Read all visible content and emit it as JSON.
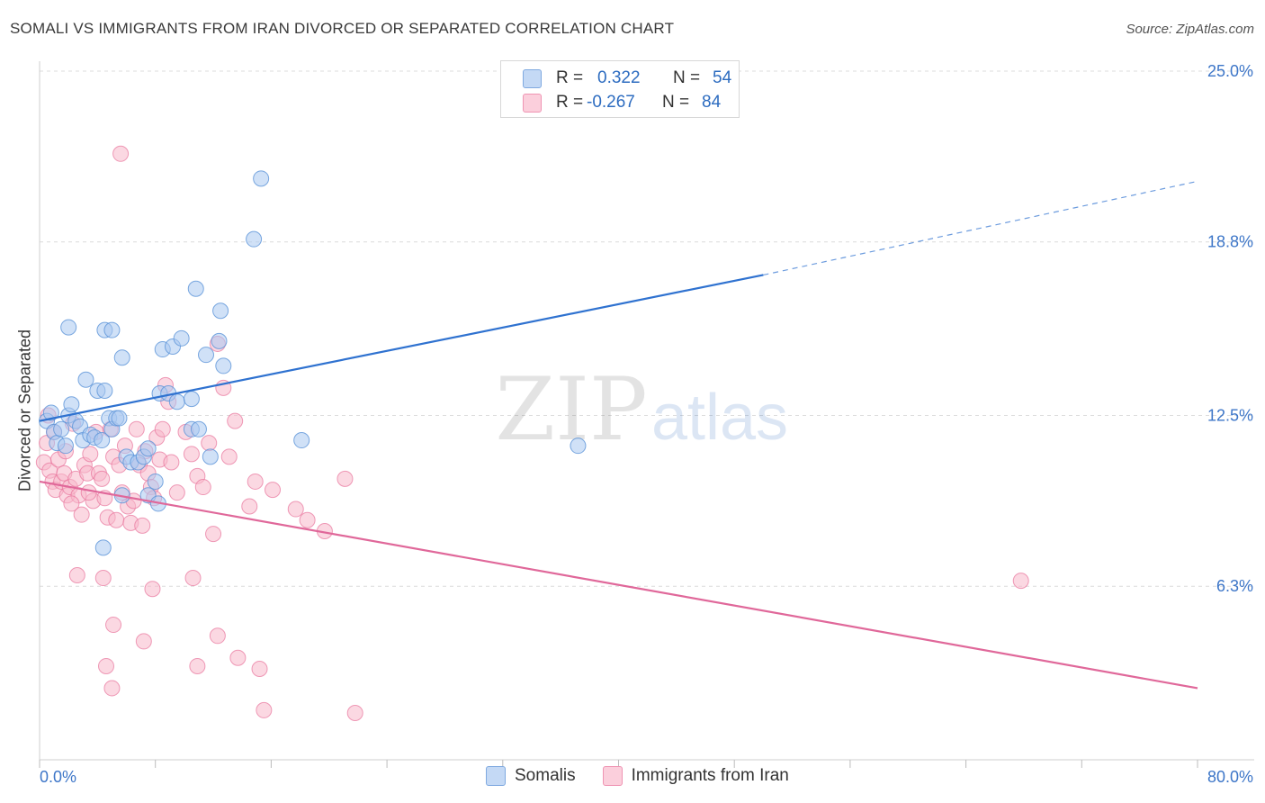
{
  "header": {
    "title": "SOMALI VS IMMIGRANTS FROM IRAN DIVORCED OR SEPARATED CORRELATION CHART",
    "source": "Source: ZipAtlas.com"
  },
  "watermark": {
    "zip": "ZIP",
    "atlas": "atlas"
  },
  "legend": {
    "rows": [
      {
        "r_label": "R =",
        "r_value": "0.322",
        "n_label": "N =",
        "n_value": "54",
        "color": "#aac8f0"
      },
      {
        "r_label": "R =",
        "r_value": "-0.267",
        "n_label": "N =",
        "n_value": "84",
        "color": "#f7b8cb"
      }
    ]
  },
  "bottom_legend": {
    "somali": "Somalis",
    "iran": "Immigrants from Iran"
  },
  "chart_data": {
    "type": "scatter",
    "title": "SOMALI VS IMMIGRANTS FROM IRAN DIVORCED OR SEPARATED CORRELATION CHART",
    "xlabel": "",
    "ylabel": "Divorced or Separated",
    "xlim": [
      0,
      80
    ],
    "ylim": [
      0,
      25
    ],
    "x_tick_labels": [
      "0.0%",
      "80.0%"
    ],
    "y_ticks": [
      6.3,
      12.5,
      18.8,
      25.0
    ],
    "y_tick_labels": [
      "6.3%",
      "12.5%",
      "18.8%",
      "25.0%"
    ],
    "grid": "horizontal dashed",
    "legend_position": "top-center",
    "colors": {
      "somali": "#5b93d8",
      "somali_fill": "#aac8f0",
      "iran": "#e8739b",
      "iran_fill": "#f7b8cb",
      "somali_line": "#2f72d0",
      "iran_line": "#e0689a"
    },
    "series": [
      {
        "name": "Somalis",
        "trend": {
          "x0": 0,
          "y0": 12.3,
          "x1": 50,
          "y1": 17.6,
          "dashed_to_x": 80,
          "dashed_to_y": 21.0
        },
        "points": [
          [
            0.5,
            12.3
          ],
          [
            0.8,
            12.6
          ],
          [
            1.0,
            11.9
          ],
          [
            1.2,
            11.5
          ],
          [
            1.5,
            12.0
          ],
          [
            1.8,
            11.4
          ],
          [
            2.0,
            12.5
          ],
          [
            2.2,
            12.9
          ],
          [
            2.5,
            12.3
          ],
          [
            2.8,
            12.1
          ],
          [
            3.0,
            11.6
          ],
          [
            3.2,
            13.8
          ],
          [
            3.5,
            11.8
          ],
          [
            3.8,
            11.7
          ],
          [
            4.0,
            13.4
          ],
          [
            4.3,
            11.6
          ],
          [
            4.5,
            13.4
          ],
          [
            4.8,
            12.4
          ],
          [
            5.0,
            12.0
          ],
          [
            5.3,
            12.4
          ],
          [
            5.5,
            12.4
          ],
          [
            6.0,
            11.0
          ],
          [
            6.3,
            10.8
          ],
          [
            6.8,
            10.8
          ],
          [
            2.0,
            15.7
          ],
          [
            4.5,
            15.6
          ],
          [
            5.0,
            15.6
          ],
          [
            5.7,
            14.6
          ],
          [
            5.7,
            9.6
          ],
          [
            7.2,
            11.0
          ],
          [
            7.5,
            9.6
          ],
          [
            7.5,
            11.3
          ],
          [
            8.0,
            10.1
          ],
          [
            8.2,
            9.3
          ],
          [
            8.3,
            13.3
          ],
          [
            8.5,
            14.9
          ],
          [
            8.9,
            13.3
          ],
          [
            9.2,
            15.0
          ],
          [
            9.5,
            13.0
          ],
          [
            9.8,
            15.3
          ],
          [
            10.5,
            13.1
          ],
          [
            10.5,
            12.0
          ],
          [
            10.8,
            17.1
          ],
          [
            11.0,
            12.0
          ],
          [
            11.5,
            14.7
          ],
          [
            11.8,
            11.0
          ],
          [
            12.4,
            15.2
          ],
          [
            12.5,
            16.3
          ],
          [
            12.7,
            14.3
          ],
          [
            14.8,
            18.9
          ],
          [
            4.4,
            7.7
          ],
          [
            15.3,
            21.1
          ],
          [
            18.1,
            11.6
          ],
          [
            37.2,
            11.4
          ]
        ]
      },
      {
        "name": "Immigrants from Iran",
        "trend": {
          "x0": 0,
          "y0": 10.1,
          "x1": 80,
          "y1": 2.6
        },
        "points": [
          [
            0.3,
            10.8
          ],
          [
            0.5,
            11.5
          ],
          [
            0.7,
            10.5
          ],
          [
            0.9,
            10.1
          ],
          [
            1.1,
            9.8
          ],
          [
            1.3,
            10.9
          ],
          [
            1.5,
            10.1
          ],
          [
            1.7,
            10.4
          ],
          [
            1.9,
            9.6
          ],
          [
            2.1,
            9.9
          ],
          [
            2.3,
            12.2
          ],
          [
            2.5,
            10.2
          ],
          [
            2.7,
            9.6
          ],
          [
            2.9,
            8.9
          ],
          [
            3.1,
            10.7
          ],
          [
            3.3,
            10.4
          ],
          [
            3.5,
            11.1
          ],
          [
            3.7,
            9.4
          ],
          [
            3.9,
            11.9
          ],
          [
            4.1,
            10.4
          ],
          [
            4.3,
            10.2
          ],
          [
            4.5,
            9.5
          ],
          [
            4.7,
            8.8
          ],
          [
            4.9,
            12.0
          ],
          [
            5.1,
            11.0
          ],
          [
            5.3,
            8.7
          ],
          [
            5.5,
            10.7
          ],
          [
            5.7,
            9.7
          ],
          [
            5.9,
            11.4
          ],
          [
            6.1,
            9.2
          ],
          [
            6.3,
            8.6
          ],
          [
            6.5,
            9.4
          ],
          [
            6.7,
            12.0
          ],
          [
            6.9,
            10.7
          ],
          [
            7.1,
            8.5
          ],
          [
            7.3,
            11.2
          ],
          [
            7.5,
            10.4
          ],
          [
            7.7,
            9.9
          ],
          [
            7.9,
            9.5
          ],
          [
            8.1,
            11.7
          ],
          [
            8.3,
            10.9
          ],
          [
            8.5,
            12.0
          ],
          [
            8.7,
            13.6
          ],
          [
            8.9,
            13.0
          ],
          [
            9.1,
            10.8
          ],
          [
            9.5,
            9.7
          ],
          [
            10.1,
            11.9
          ],
          [
            10.5,
            11.1
          ],
          [
            10.9,
            10.3
          ],
          [
            11.3,
            9.9
          ],
          [
            11.7,
            11.5
          ],
          [
            12.3,
            15.1
          ],
          [
            12.7,
            13.5
          ],
          [
            13.1,
            11.0
          ],
          [
            13.5,
            12.3
          ],
          [
            14.5,
            9.2
          ],
          [
            14.9,
            10.1
          ],
          [
            16.1,
            9.8
          ],
          [
            17.7,
            9.1
          ],
          [
            18.5,
            8.7
          ],
          [
            19.7,
            8.3
          ],
          [
            21.1,
            10.2
          ],
          [
            5.6,
            22.0
          ],
          [
            2.6,
            6.7
          ],
          [
            4.4,
            6.6
          ],
          [
            7.8,
            6.2
          ],
          [
            10.6,
            6.6
          ],
          [
            12.0,
            8.2
          ],
          [
            5.1,
            4.9
          ],
          [
            7.2,
            4.3
          ],
          [
            4.6,
            3.4
          ],
          [
            5.0,
            2.6
          ],
          [
            10.9,
            3.4
          ],
          [
            12.3,
            4.5
          ],
          [
            13.7,
            3.7
          ],
          [
            15.2,
            3.3
          ],
          [
            15.5,
            1.8
          ],
          [
            21.8,
            1.7
          ],
          [
            67.8,
            6.5
          ],
          [
            0.6,
            12.5
          ],
          [
            1.0,
            11.9
          ],
          [
            1.8,
            11.2
          ],
          [
            2.2,
            9.3
          ],
          [
            3.4,
            9.7
          ]
        ]
      }
    ]
  }
}
